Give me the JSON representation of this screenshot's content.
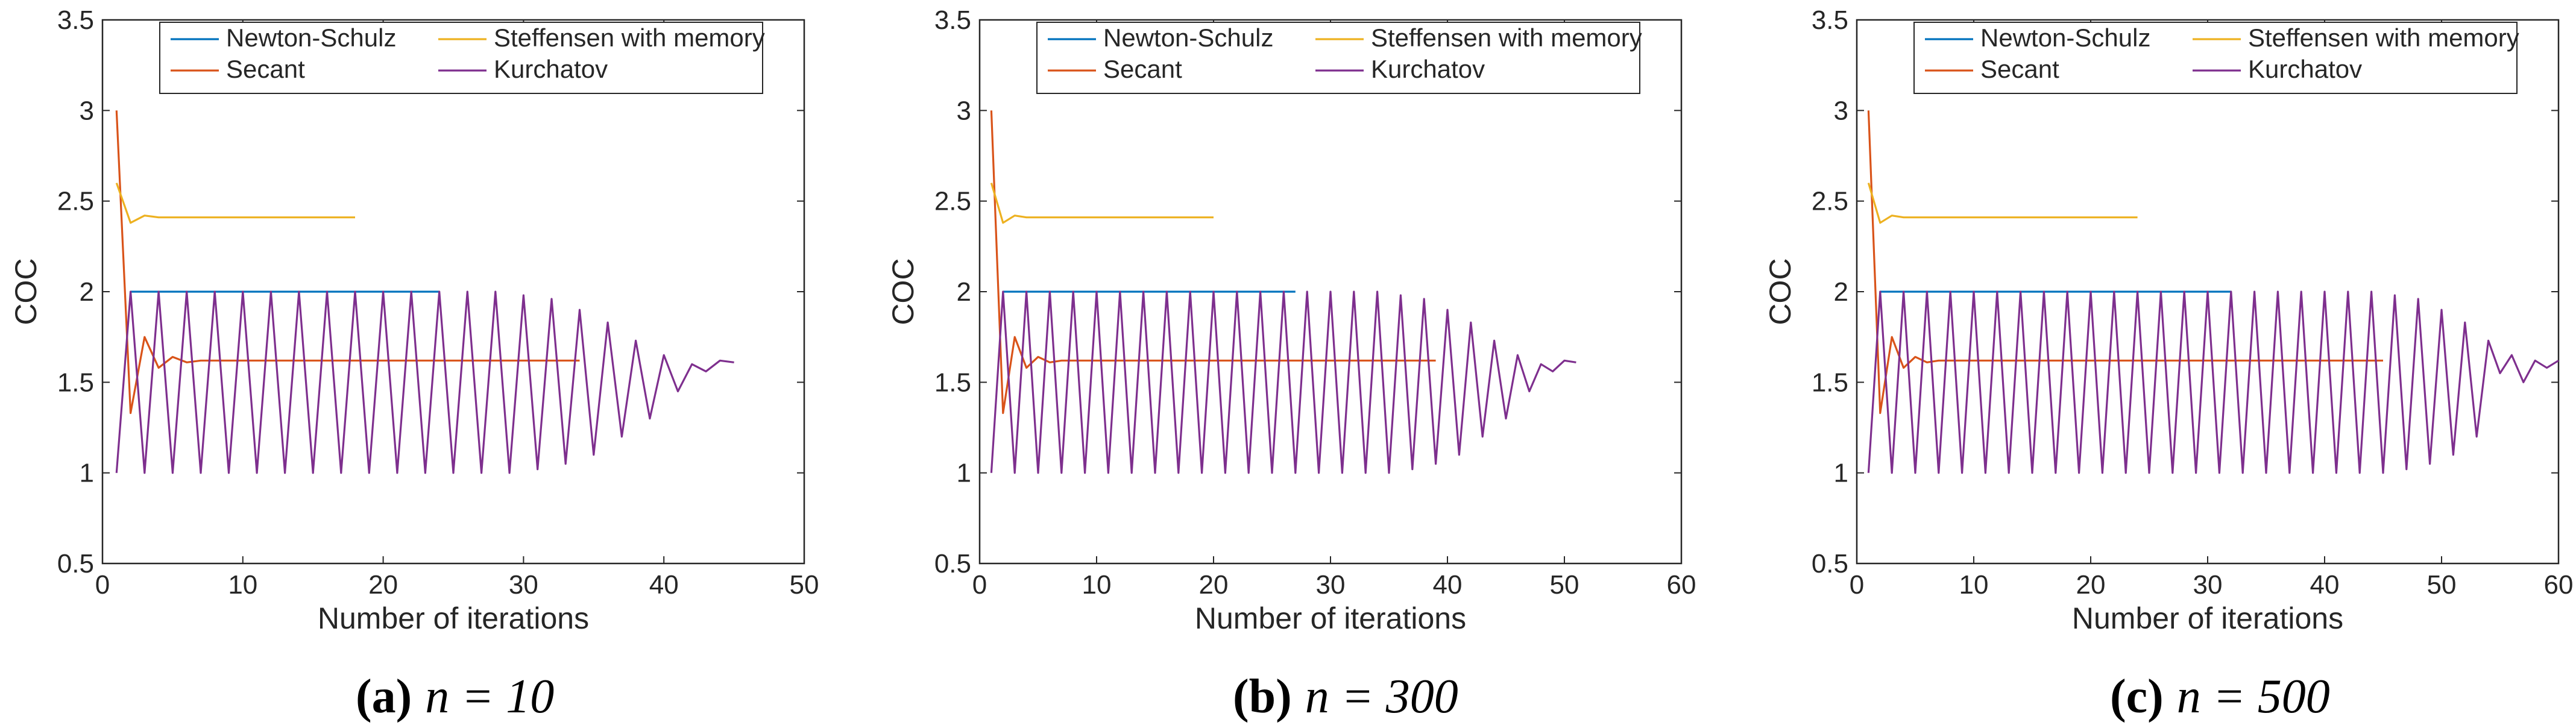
{
  "colors": {
    "newton_schulz": "#0072bd",
    "secant": "#d95319",
    "steffensen": "#edb120",
    "kurchatov": "#7e2f8e",
    "axis": "#262626"
  },
  "chart_data": [
    {
      "type": "line",
      "caption": {
        "label": "(a)",
        "text": "n = 10"
      },
      "xlabel": "Number of iterations",
      "ylabel": "COC",
      "xlim": [
        0,
        50
      ],
      "ylim": [
        0.5,
        3.5
      ],
      "xticks": [
        "0",
        "10",
        "20",
        "30",
        "40",
        "50"
      ],
      "yticks": [
        "0.5",
        "1",
        "1.5",
        "2",
        "2.5",
        "3",
        "3.5"
      ],
      "grid": false,
      "legend": {
        "placement": "top",
        "entries": [
          "Newton-Schulz",
          "Secant",
          "Steffensen with memory",
          "Kurchatov"
        ]
      },
      "series": [
        {
          "name": "Newton-Schulz",
          "color": "#0072bd",
          "x": [
            2,
            24
          ],
          "y": [
            2.0,
            2.0
          ]
        },
        {
          "name": "Secant",
          "color": "#d95319",
          "x": [
            1,
            2,
            3,
            4,
            5,
            6,
            7,
            34
          ],
          "y": [
            3.0,
            1.33,
            1.75,
            1.58,
            1.64,
            1.61,
            1.62,
            1.62
          ]
        },
        {
          "name": "Steffensen with memory",
          "color": "#edb120",
          "x": [
            1,
            2,
            3,
            4,
            5,
            18
          ],
          "y": [
            2.6,
            2.38,
            2.42,
            2.41,
            2.41,
            2.41
          ]
        },
        {
          "name": "Kurchatov",
          "color": "#7e2f8e",
          "x": [
            1,
            2,
            3,
            4,
            5,
            6,
            7,
            8,
            9,
            10,
            11,
            12,
            13,
            14,
            15,
            16,
            17,
            18,
            19,
            20,
            21,
            22,
            23,
            24,
            25,
            26,
            27,
            28,
            29,
            30,
            31,
            32,
            33,
            34,
            35,
            36,
            37,
            38,
            39,
            40,
            41,
            42,
            43,
            44,
            45
          ],
          "y": [
            1.0,
            2.0,
            1.0,
            2.0,
            1.0,
            2.0,
            1.0,
            2.0,
            1.0,
            2.0,
            1.0,
            2.0,
            1.0,
            2.0,
            1.0,
            2.0,
            1.0,
            2.0,
            1.0,
            2.0,
            1.0,
            2.0,
            1.0,
            2.0,
            1.0,
            2.0,
            1.0,
            2.0,
            1.0,
            1.98,
            1.02,
            1.96,
            1.05,
            1.9,
            1.1,
            1.83,
            1.2,
            1.73,
            1.3,
            1.65,
            1.45,
            1.6,
            1.56,
            1.62,
            1.61
          ]
        }
      ]
    },
    {
      "type": "line",
      "caption": {
        "label": "(b)",
        "text": "n = 300"
      },
      "xlabel": "Number of iterations",
      "ylabel": "COC",
      "xlim": [
        0,
        60
      ],
      "ylim": [
        0.5,
        3.5
      ],
      "xticks": [
        "0",
        "10",
        "20",
        "30",
        "40",
        "50",
        "60"
      ],
      "yticks": [
        "0.5",
        "1",
        "1.5",
        "2",
        "2.5",
        "3",
        "3.5"
      ],
      "grid": false,
      "legend": {
        "placement": "top",
        "entries": [
          "Newton-Schulz",
          "Secant",
          "Steffensen with memory",
          "Kurchatov"
        ]
      },
      "series": [
        {
          "name": "Newton-Schulz",
          "color": "#0072bd",
          "x": [
            2,
            27
          ],
          "y": [
            2.0,
            2.0
          ]
        },
        {
          "name": "Secant",
          "color": "#d95319",
          "x": [
            1,
            2,
            3,
            4,
            5,
            6,
            7,
            39
          ],
          "y": [
            3.0,
            1.33,
            1.75,
            1.58,
            1.64,
            1.61,
            1.62,
            1.62
          ]
        },
        {
          "name": "Steffensen with memory",
          "color": "#edb120",
          "x": [
            1,
            2,
            3,
            4,
            5,
            20
          ],
          "y": [
            2.6,
            2.38,
            2.42,
            2.41,
            2.41,
            2.41
          ]
        },
        {
          "name": "Kurchatov",
          "color": "#7e2f8e",
          "x": [
            1,
            2,
            3,
            4,
            5,
            6,
            7,
            8,
            9,
            10,
            11,
            12,
            13,
            14,
            15,
            16,
            17,
            18,
            19,
            20,
            21,
            22,
            23,
            24,
            25,
            26,
            27,
            28,
            29,
            30,
            31,
            32,
            33,
            34,
            35,
            36,
            37,
            38,
            39,
            40,
            41,
            42,
            43,
            44,
            45,
            46,
            47,
            48,
            49,
            50,
            51
          ],
          "y": [
            1.0,
            2.0,
            1.0,
            2.0,
            1.0,
            2.0,
            1.0,
            2.0,
            1.0,
            2.0,
            1.0,
            2.0,
            1.0,
            2.0,
            1.0,
            2.0,
            1.0,
            2.0,
            1.0,
            2.0,
            1.0,
            2.0,
            1.0,
            2.0,
            1.0,
            2.0,
            1.0,
            2.0,
            1.0,
            2.0,
            1.0,
            2.0,
            1.0,
            2.0,
            1.0,
            1.98,
            1.02,
            1.96,
            1.05,
            1.9,
            1.1,
            1.83,
            1.2,
            1.73,
            1.3,
            1.65,
            1.45,
            1.6,
            1.56,
            1.62,
            1.61
          ]
        }
      ]
    },
    {
      "type": "line",
      "caption": {
        "label": "(c)",
        "text": "n = 500"
      },
      "xlabel": "Number of iterations",
      "ylabel": "COC",
      "xlim": [
        0,
        60
      ],
      "ylim": [
        0.5,
        3.5
      ],
      "xticks": [
        "0",
        "10",
        "20",
        "30",
        "40",
        "50",
        "60"
      ],
      "yticks": [
        "0.5",
        "1",
        "1.5",
        "2",
        "2.5",
        "3",
        "3.5"
      ],
      "grid": false,
      "legend": {
        "placement": "top",
        "entries": [
          "Newton-Schulz",
          "Secant",
          "Steffensen with memory",
          "Kurchatov"
        ]
      },
      "series": [
        {
          "name": "Newton-Schulz",
          "color": "#0072bd",
          "x": [
            2,
            32
          ],
          "y": [
            2.0,
            2.0
          ]
        },
        {
          "name": "Secant",
          "color": "#d95319",
          "x": [
            1,
            2,
            3,
            4,
            5,
            6,
            7,
            45
          ],
          "y": [
            3.0,
            1.33,
            1.75,
            1.58,
            1.64,
            1.61,
            1.62,
            1.62
          ]
        },
        {
          "name": "Steffensen with memory",
          "color": "#edb120",
          "x": [
            1,
            2,
            3,
            4,
            5,
            24
          ],
          "y": [
            2.6,
            2.38,
            2.42,
            2.41,
            2.41,
            2.41
          ]
        },
        {
          "name": "Kurchatov",
          "color": "#7e2f8e",
          "x": [
            1,
            2,
            3,
            4,
            5,
            6,
            7,
            8,
            9,
            10,
            11,
            12,
            13,
            14,
            15,
            16,
            17,
            18,
            19,
            20,
            21,
            22,
            23,
            24,
            25,
            26,
            27,
            28,
            29,
            30,
            31,
            32,
            33,
            34,
            35,
            36,
            37,
            38,
            39,
            40,
            41,
            42,
            43,
            44,
            45,
            46,
            47,
            48,
            49,
            50,
            51,
            52,
            53,
            54,
            55,
            56,
            57,
            58,
            59,
            60
          ],
          "y": [
            1.0,
            2.0,
            1.0,
            2.0,
            1.0,
            2.0,
            1.0,
            2.0,
            1.0,
            2.0,
            1.0,
            2.0,
            1.0,
            2.0,
            1.0,
            2.0,
            1.0,
            2.0,
            1.0,
            2.0,
            1.0,
            2.0,
            1.0,
            2.0,
            1.0,
            2.0,
            1.0,
            2.0,
            1.0,
            2.0,
            1.0,
            2.0,
            1.0,
            2.0,
            1.0,
            2.0,
            1.0,
            2.0,
            1.0,
            2.0,
            1.0,
            2.0,
            1.0,
            2.0,
            1.0,
            1.98,
            1.02,
            1.96,
            1.05,
            1.9,
            1.1,
            1.83,
            1.2,
            1.73,
            1.55,
            1.65,
            1.5,
            1.62,
            1.58,
            1.62
          ]
        }
      ]
    }
  ]
}
